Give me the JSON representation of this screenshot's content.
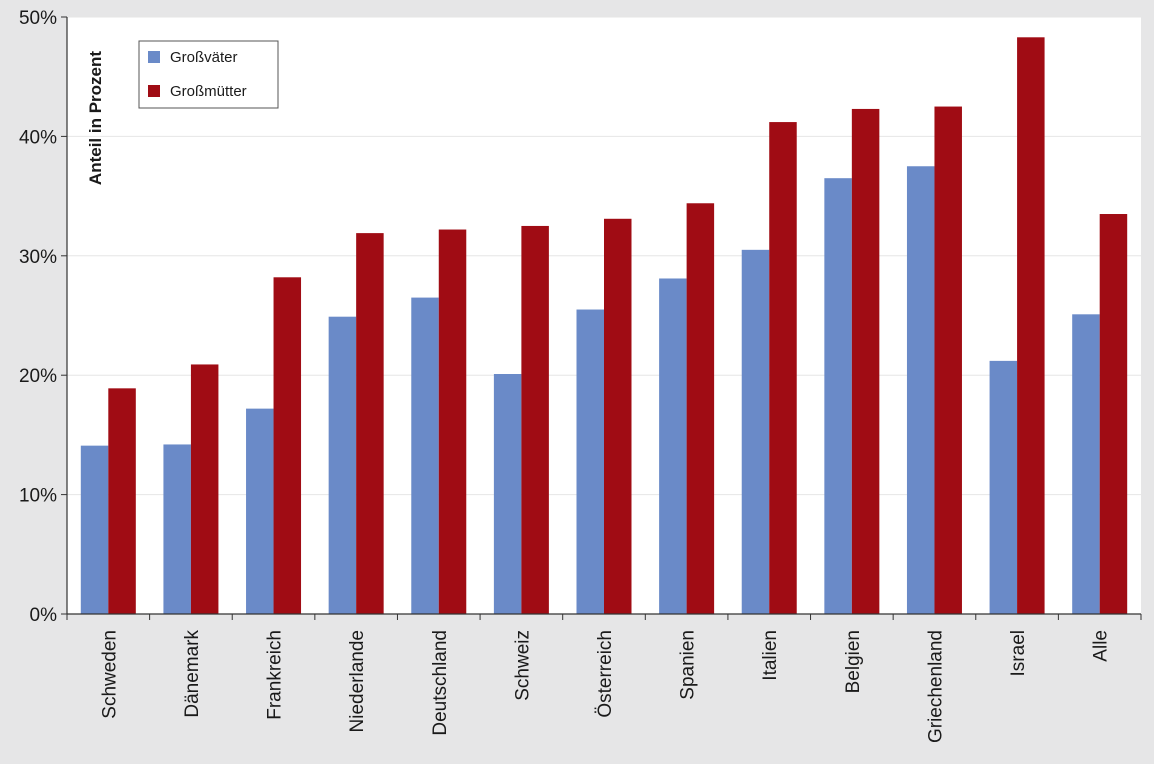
{
  "chart_data": {
    "type": "bar",
    "title": "",
    "xlabel": "",
    "ylabel": "Anteil in Prozent",
    "ylim": [
      0,
      50
    ],
    "yticks": [
      0,
      10,
      20,
      30,
      40,
      50
    ],
    "ytick_labels": [
      "0%",
      "10%",
      "20%",
      "30%",
      "40%",
      "50%"
    ],
    "grid": true,
    "legend_position": "top-left",
    "categories": [
      "Schweden",
      "Dänemark",
      "Frankreich",
      "Niederlande",
      "Deutschland",
      "Schweiz",
      "Österreich",
      "Spanien",
      "Italien",
      "Belgien",
      "Griechenland",
      "Israel",
      "Alle"
    ],
    "series": [
      {
        "name": "Großväter",
        "color": "#6a8ac8",
        "values": [
          14.1,
          14.2,
          17.2,
          24.9,
          26.5,
          20.1,
          25.5,
          28.1,
          30.5,
          36.5,
          37.5,
          21.2,
          25.1
        ]
      },
      {
        "name": "Großmütter",
        "color": "#a00c14",
        "values": [
          18.9,
          20.9,
          28.2,
          31.9,
          32.2,
          32.5,
          33.1,
          34.4,
          41.2,
          42.3,
          42.5,
          48.3,
          33.5
        ]
      }
    ]
  }
}
